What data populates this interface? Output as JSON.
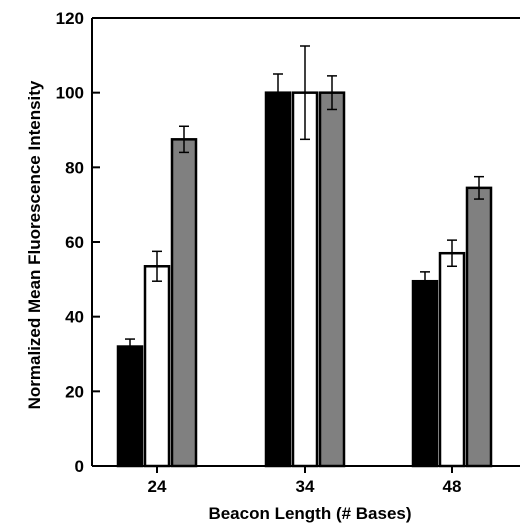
{
  "chart_data": {
    "type": "bar",
    "title": "",
    "xlabel": "Beacon Length (# Bases)",
    "ylabel": "Normalized Mean Fluorescence Intensity",
    "categories": [
      "24",
      "34",
      "48"
    ],
    "ylim": [
      0,
      120
    ],
    "yticks": [
      0,
      20,
      40,
      60,
      80,
      100,
      120
    ],
    "grid": false,
    "legend": "none",
    "series": [
      {
        "fill": "#000000",
        "values": [
          32,
          100,
          49.5
        ],
        "errors": [
          2,
          5,
          2.5
        ]
      },
      {
        "fill": "#ffffff",
        "values": [
          53.5,
          100,
          57
        ],
        "errors": [
          4,
          12.5,
          3.5
        ]
      },
      {
        "fill": "#808080",
        "values": [
          87.5,
          100,
          74.5
        ],
        "errors": [
          3.5,
          4.5,
          3
        ]
      }
    ]
  }
}
